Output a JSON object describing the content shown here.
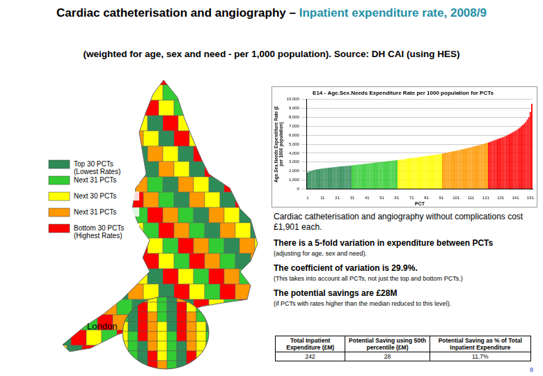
{
  "title_parts": [
    {
      "text": "Cardiac catheterisation and angiography – ",
      "color": "#000000"
    },
    {
      "text": "Inpatient expenditure rate, 2008/9",
      "color": "#1f8fa6"
    }
  ],
  "subtitle": "(weighted for age, sex and need - per 1,000 population). Source: DH CAI (using HES)",
  "map": {
    "legend": [
      {
        "label": "Top 30 PCTs\n(Lowest Rates)",
        "color": "#2e8b57"
      },
      {
        "label": "Next 31 PCTs",
        "color": "#33cc33"
      },
      {
        "label": "Next 30 PCTs",
        "color": "#ffff00"
      },
      {
        "label": "Next 31 PCTs",
        "color": "#ff9900"
      },
      {
        "label": "Bottom 30 PCTs\n(Highest Rates)",
        "color": "#ff0000"
      }
    ],
    "inset_label": "London"
  },
  "chart_data": {
    "type": "bar",
    "title": "E14 - Age.Sex.Needs Expenditure Rate per 1000 population for PCTs",
    "x_label": "PCT",
    "y_label": [
      "Age.Sex.Needs Expenditure Rate (£",
      "per 1000 population)"
    ],
    "categories": [
      "1",
      null,
      null,
      null,
      null,
      null,
      null,
      null,
      null,
      null,
      "11",
      null,
      null,
      null,
      null,
      null,
      null,
      null,
      null,
      null,
      "21",
      null,
      null,
      null,
      null,
      null,
      null,
      null,
      null,
      null,
      "31",
      null,
      null,
      null,
      null,
      null,
      null,
      null,
      null,
      null,
      "41",
      null,
      null,
      null,
      null,
      null,
      null,
      null,
      null,
      null,
      "51",
      null,
      null,
      null,
      null,
      null,
      null,
      null,
      null,
      null,
      "61",
      null,
      null,
      null,
      null,
      null,
      null,
      null,
      null,
      null,
      "71",
      null,
      null,
      null,
      null,
      null,
      null,
      null,
      null,
      null,
      "81",
      null,
      null,
      null,
      null,
      null,
      null,
      null,
      null,
      null,
      "91",
      null,
      null,
      null,
      null,
      null,
      null,
      null,
      null,
      null,
      "101",
      null,
      null,
      null,
      null,
      null,
      null,
      null,
      null,
      null,
      "111",
      null,
      null,
      null,
      null,
      null,
      null,
      null,
      null,
      null,
      "121",
      null,
      null,
      null,
      null,
      null,
      null,
      null,
      null,
      null,
      "131",
      null,
      null,
      null,
      null,
      null,
      null,
      null,
      null,
      null,
      "141",
      null,
      null,
      null,
      null,
      null,
      null,
      null,
      null,
      null,
      "151",
      null
    ],
    "values": [
      1850,
      1950,
      2000,
      2050,
      2100,
      2150,
      2180,
      2200,
      2230,
      2260,
      2280,
      2300,
      2320,
      2340,
      2360,
      2380,
      2400,
      2420,
      2440,
      2460,
      2480,
      2500,
      2510,
      2520,
      2540,
      2560,
      2570,
      2580,
      2600,
      2620,
      2640,
      2660,
      2680,
      2700,
      2710,
      2720,
      2740,
      2760,
      2780,
      2800,
      2820,
      2840,
      2860,
      2880,
      2900,
      2920,
      2940,
      2960,
      2980,
      3000,
      3020,
      3040,
      3060,
      3080,
      3100,
      3120,
      3140,
      3160,
      3180,
      3200,
      3220,
      3240,
      3260,
      3280,
      3300,
      3320,
      3350,
      3380,
      3400,
      3420,
      3440,
      3460,
      3480,
      3500,
      3520,
      3550,
      3580,
      3600,
      3620,
      3650,
      3680,
      3700,
      3720,
      3750,
      3780,
      3800,
      3830,
      3860,
      3880,
      3900,
      3930,
      3960,
      4000,
      4030,
      4060,
      4100,
      4130,
      4160,
      4200,
      4230,
      4260,
      4300,
      4340,
      4380,
      4420,
      4460,
      4500,
      4540,
      4580,
      4620,
      4660,
      4700,
      4740,
      4780,
      4820,
      4860,
      4900,
      4950,
      5000,
      5050,
      5100,
      5150,
      5200,
      5260,
      5320,
      5380,
      5440,
      5500,
      5560,
      5620,
      5680,
      5740,
      5800,
      5880,
      5960,
      6040,
      6120,
      6200,
      6300,
      6400,
      6500,
      6600,
      6720,
      6850,
      7000,
      7150,
      7300,
      7500,
      7750,
      8000,
      8600,
      9500
    ],
    "colors": [
      "#2e8b57",
      "#2e8b57",
      "#2e8b57",
      "#2e8b57",
      "#2e8b57",
      "#2e8b57",
      "#2e8b57",
      "#2e8b57",
      "#2e8b57",
      "#2e8b57",
      "#2e8b57",
      "#2e8b57",
      "#2e8b57",
      "#2e8b57",
      "#2e8b57",
      "#2e8b57",
      "#2e8b57",
      "#2e8b57",
      "#2e8b57",
      "#2e8b57",
      "#2e8b57",
      "#2e8b57",
      "#2e8b57",
      "#2e8b57",
      "#2e8b57",
      "#2e8b57",
      "#2e8b57",
      "#2e8b57",
      "#2e8b57",
      "#2e8b57",
      "#33cc33",
      "#33cc33",
      "#33cc33",
      "#33cc33",
      "#33cc33",
      "#33cc33",
      "#33cc33",
      "#33cc33",
      "#33cc33",
      "#33cc33",
      "#33cc33",
      "#33cc33",
      "#33cc33",
      "#33cc33",
      "#33cc33",
      "#33cc33",
      "#33cc33",
      "#33cc33",
      "#33cc33",
      "#33cc33",
      "#33cc33",
      "#33cc33",
      "#33cc33",
      "#33cc33",
      "#33cc33",
      "#33cc33",
      "#33cc33",
      "#33cc33",
      "#33cc33",
      "#33cc33",
      "#33cc33",
      "#ffff00",
      "#ffff00",
      "#ffff00",
      "#ffff00",
      "#ffff00",
      "#ffff00",
      "#ffff00",
      "#ffff00",
      "#ffff00",
      "#ffff00",
      "#ffff00",
      "#ffff00",
      "#ffff00",
      "#ffff00",
      "#ffff00",
      "#ffff00",
      "#ffff00",
      "#ffff00",
      "#ffff00",
      "#ffff00",
      "#ffff00",
      "#ffff00",
      "#ffff00",
      "#ffff00",
      "#ffff00",
      "#ffff00",
      "#ffff00",
      "#ffff00",
      "#ffff00",
      "#ffff00",
      "#ff9900",
      "#ff9900",
      "#ff9900",
      "#ff9900",
      "#ff9900",
      "#ff9900",
      "#ff9900",
      "#ff9900",
      "#ff9900",
      "#ff9900",
      "#ff9900",
      "#ff9900",
      "#ff9900",
      "#ff9900",
      "#ff9900",
      "#ff9900",
      "#ff9900",
      "#ff9900",
      "#ff9900",
      "#ff9900",
      "#ff9900",
      "#ff9900",
      "#ff9900",
      "#ff9900",
      "#ff9900",
      "#ff9900",
      "#ff9900",
      "#ff9900",
      "#ff9900",
      "#ff9900",
      "#ff9900",
      "#ff0000",
      "#ff0000",
      "#ff0000",
      "#ff0000",
      "#ff0000",
      "#ff0000",
      "#ff0000",
      "#ff0000",
      "#ff0000",
      "#ff0000",
      "#ff0000",
      "#ff0000",
      "#ff0000",
      "#ff0000",
      "#ff0000",
      "#ff0000",
      "#ff0000",
      "#ff0000",
      "#ff0000",
      "#ff0000",
      "#ff0000",
      "#ff0000",
      "#ff0000",
      "#ff0000",
      "#ff0000",
      "#ff0000",
      "#ff0000",
      "#ff0000",
      "#ff0000",
      "#ff0000"
    ],
    "ylim": [
      0,
      10000
    ],
    "yticks": [
      0,
      {
        "value": 1000,
        "label": "1,000"
      },
      {
        "value": 2000,
        "label": "2,000"
      },
      {
        "value": 3000,
        "label": "3,000"
      },
      {
        "value": 4000,
        "label": "4,000"
      },
      {
        "value": 5000,
        "label": "5,000"
      },
      {
        "value": 6000,
        "label": "6,000"
      },
      {
        "value": 7000,
        "label": "7,000"
      },
      {
        "value": 8000,
        "label": "8,000"
      },
      {
        "value": 9000,
        "label": "9,000"
      },
      {
        "value": 10000,
        "label": "10,000"
      }
    ],
    "grid": true
  },
  "notes": [
    {
      "main": "Cardiac catheterisation and angiography without complications cost £1,901 each."
    },
    {
      "main": "There is a 5-fold variation in expenditure between PCTs",
      "small": "(adjusting for age, sex and need)."
    },
    {
      "main": "The coefficient of variation is 29.9%.",
      "small": "(This takes into account all PCTs, not just the top and bottom PCTs.)"
    },
    {
      "main": "The potential savings are £28M",
      "small": "(if PCTs with rates higher than the median reduced to this level)."
    }
  ],
  "table": {
    "header": [
      "Total Inpatient Expenditure (£M)",
      "Potential Saving using 50th percentile (£M)",
      "Potential Saving as % of Total Inpatient Expenditure"
    ],
    "rows": [
      [
        "242",
        "28",
        "11.7%"
      ]
    ]
  },
  "page_number": "8"
}
